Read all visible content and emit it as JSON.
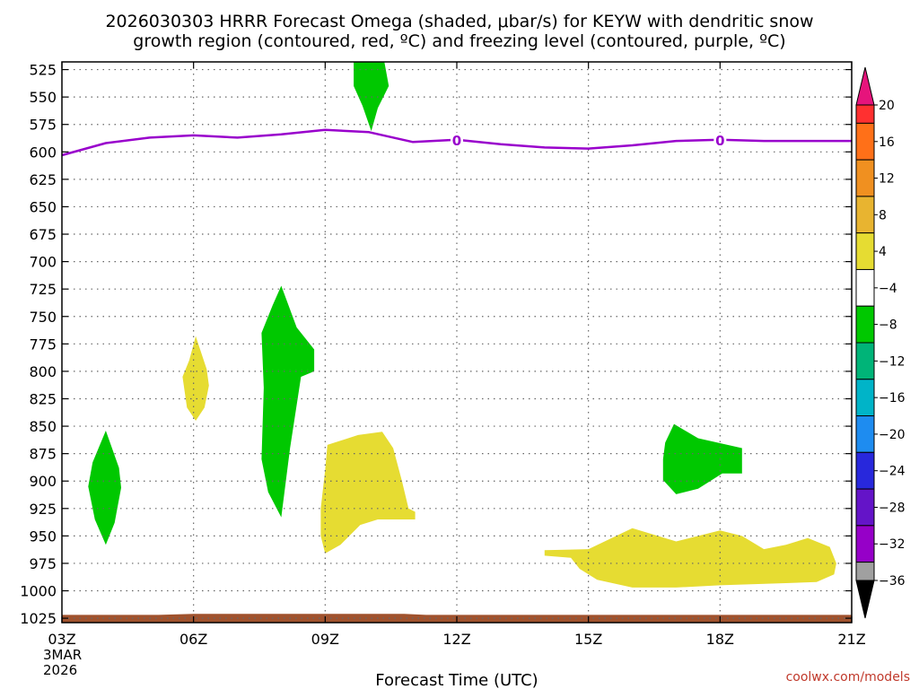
{
  "chart_data": {
    "type": "time-pressure cross-section",
    "title_line1": "2026030303 HRRR Forecast Omega (shaded, μbar/s) for KEYW with dendritic snow",
    "title_line2": "growth region (contoured, red, ºC) and freezing level (contoured, purple, ºC)",
    "xlabel": "Forecast Time (UTC)",
    "x_range_hours": [
      3,
      21
    ],
    "x_ticks": [
      {
        "hour": 3,
        "label": "03Z"
      },
      {
        "hour": 6,
        "label": "06Z"
      },
      {
        "hour": 9,
        "label": "09Z"
      },
      {
        "hour": 12,
        "label": "12Z"
      },
      {
        "hour": 15,
        "label": "15Z"
      },
      {
        "hour": 18,
        "label": "18Z"
      },
      {
        "hour": 21,
        "label": "21Z"
      }
    ],
    "date_label_line1": "3MAR",
    "date_label_line2": "2026",
    "y_ticks": [
      525,
      550,
      575,
      600,
      625,
      650,
      675,
      700,
      725,
      750,
      775,
      800,
      825,
      850,
      875,
      900,
      925,
      950,
      975,
      1000,
      1025
    ],
    "y_range_hpa": [
      518,
      1029
    ],
    "freezing_level": {
      "color": "#9900cc",
      "contour_label": "0",
      "label_hours": [
        12,
        18
      ],
      "points": [
        [
          3,
          603
        ],
        [
          4,
          592
        ],
        [
          5,
          587
        ],
        [
          6,
          585
        ],
        [
          7,
          587
        ],
        [
          8,
          584
        ],
        [
          9,
          580
        ],
        [
          10,
          582
        ],
        [
          11,
          591
        ],
        [
          12,
          589
        ],
        [
          13,
          593
        ],
        [
          14,
          596
        ],
        [
          15,
          597
        ],
        [
          16,
          594
        ],
        [
          17,
          590
        ],
        [
          18,
          589
        ],
        [
          19,
          590
        ],
        [
          20,
          590
        ],
        [
          21,
          590
        ]
      ]
    },
    "omega_regions": [
      {
        "name": "green-upper",
        "color": "#00c800",
        "points": [
          [
            9.65,
            518
          ],
          [
            10.35,
            518
          ],
          [
            10.45,
            540
          ],
          [
            10.2,
            560
          ],
          [
            10.05,
            581
          ],
          [
            9.85,
            558
          ],
          [
            9.65,
            540
          ]
        ]
      },
      {
        "name": "green-early",
        "color": "#00c800",
        "points": [
          [
            4.0,
            854
          ],
          [
            4.3,
            888
          ],
          [
            4.35,
            906
          ],
          [
            4.2,
            938
          ],
          [
            4.0,
            958
          ],
          [
            3.75,
            935
          ],
          [
            3.6,
            905
          ],
          [
            3.7,
            883
          ]
        ]
      },
      {
        "name": "yellow-06z",
        "color": "#e6dc32",
        "points": [
          [
            6.05,
            768
          ],
          [
            6.3,
            798
          ],
          [
            6.35,
            813
          ],
          [
            6.25,
            833
          ],
          [
            6.05,
            845
          ],
          [
            5.85,
            833
          ],
          [
            5.75,
            805
          ],
          [
            5.9,
            790
          ]
        ]
      },
      {
        "name": "green-08z",
        "color": "#00c800",
        "points": [
          [
            8.0,
            722
          ],
          [
            8.35,
            760
          ],
          [
            8.75,
            780
          ],
          [
            8.75,
            800
          ],
          [
            8.45,
            805
          ],
          [
            8.2,
            870
          ],
          [
            8.0,
            933
          ],
          [
            7.7,
            910
          ],
          [
            7.55,
            880
          ],
          [
            7.6,
            815
          ],
          [
            7.55,
            765
          ],
          [
            7.8,
            740
          ]
        ]
      },
      {
        "name": "yellow-09z",
        "color": "#e6dc32",
        "points": [
          [
            9.05,
            867
          ],
          [
            9.75,
            858
          ],
          [
            10.3,
            855
          ],
          [
            10.55,
            870
          ],
          [
            10.75,
            900
          ],
          [
            10.9,
            925
          ],
          [
            11.05,
            928
          ],
          [
            11.05,
            935
          ],
          [
            10.2,
            935
          ],
          [
            9.8,
            940
          ],
          [
            9.35,
            958
          ],
          [
            9.0,
            966
          ],
          [
            8.9,
            950
          ],
          [
            8.9,
            925
          ],
          [
            9.0,
            890
          ]
        ]
      },
      {
        "name": "green-17z",
        "color": "#00c800",
        "points": [
          [
            16.95,
            848
          ],
          [
            17.5,
            861
          ],
          [
            18.5,
            870
          ],
          [
            18.5,
            893
          ],
          [
            18.05,
            893
          ],
          [
            17.5,
            907
          ],
          [
            17.0,
            912
          ],
          [
            16.7,
            899
          ],
          [
            16.7,
            880
          ],
          [
            16.75,
            865
          ]
        ]
      },
      {
        "name": "yellow-lower",
        "color": "#e6dc32",
        "points": [
          [
            14.0,
            963
          ],
          [
            15.0,
            962
          ],
          [
            16.0,
            943
          ],
          [
            17.0,
            955
          ],
          [
            18.0,
            945
          ],
          [
            18.5,
            950
          ],
          [
            19.0,
            962
          ],
          [
            19.5,
            958
          ],
          [
            20.0,
            952
          ],
          [
            20.5,
            960
          ],
          [
            20.65,
            975
          ],
          [
            20.6,
            985
          ],
          [
            20.2,
            992
          ],
          [
            19.5,
            993
          ],
          [
            18.0,
            995
          ],
          [
            17.0,
            997
          ],
          [
            16.0,
            997
          ],
          [
            15.2,
            990
          ],
          [
            14.8,
            980
          ],
          [
            14.6,
            970
          ],
          [
            14.0,
            968
          ]
        ]
      }
    ],
    "surface_band": {
      "color": "#a0522d",
      "top_points": [
        [
          3,
          1022
        ],
        [
          5.2,
          1022
        ],
        [
          6,
          1021
        ],
        [
          10.8,
          1021
        ],
        [
          11.3,
          1022
        ],
        [
          21,
          1022
        ]
      ],
      "bottom_hpa": 1029
    },
    "colorbar": {
      "labels": [
        "20",
        "16",
        "12",
        "8",
        "4",
        "−4",
        "−8",
        "−12",
        "−16",
        "−20",
        "−24",
        "−28",
        "−32",
        "−36"
      ],
      "colors": [
        "#ff3030",
        "#ff7018",
        "#f09020",
        "#e8b430",
        "#e6dc32",
        "#ffffff",
        "#00c800",
        "#00b478",
        "#00b4c8",
        "#1e8cf0",
        "#2828dc",
        "#6414c8",
        "#9600c8",
        "#a0a0a0"
      ],
      "top_arrow_color": "#e6147c",
      "bottom_arrow_color": "#000000"
    }
  },
  "credit": "coolwx.com/models"
}
